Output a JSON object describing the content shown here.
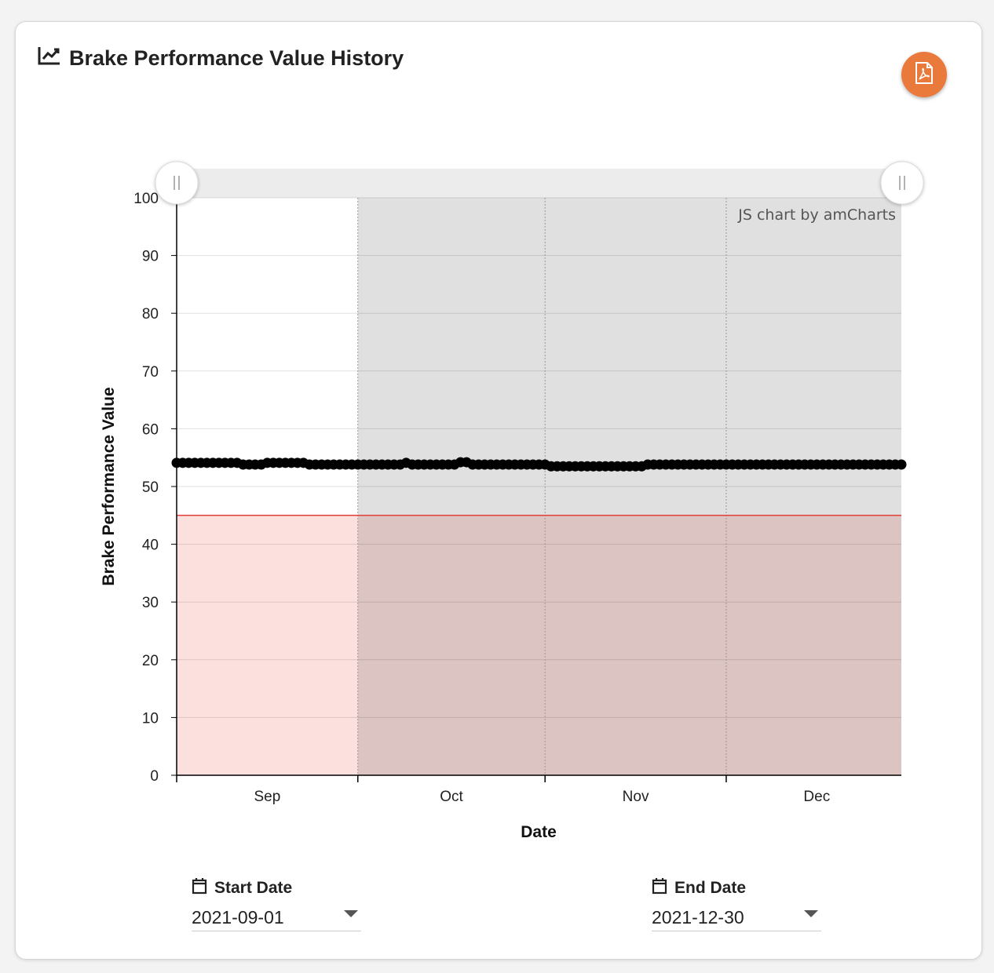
{
  "header": {
    "title": "Brake Performance Value History",
    "icon": "line-chart-icon",
    "export_icon": "pdf-file-icon",
    "accent": "#ea7a3c"
  },
  "chart_data": {
    "type": "line",
    "xlabel": "Date",
    "ylabel": "Brake Performance Value",
    "ylim": [
      0,
      100
    ],
    "yticks": [
      0,
      10,
      20,
      30,
      40,
      50,
      60,
      70,
      80,
      90,
      100
    ],
    "x_start": "2021-09-01",
    "x_end": "2021-12-30",
    "x_interval": "1 day",
    "xtick_labels": [
      "Sep",
      "Oct",
      "Nov",
      "Dec"
    ],
    "series": [
      {
        "name": "Brake Performance Value",
        "color": "#000000",
        "values": [
          54.1,
          54.1,
          54.1,
          54.1,
          54.1,
          54.1,
          54.1,
          54.1,
          54.1,
          54.1,
          54.1,
          53.8,
          53.8,
          53.8,
          53.8,
          54.1,
          54.1,
          54.1,
          54.1,
          54.1,
          54.1,
          54.1,
          53.8,
          53.8,
          53.8,
          53.8,
          53.8,
          53.8,
          53.8,
          53.8,
          53.8,
          53.8,
          53.8,
          53.8,
          53.8,
          53.8,
          53.8,
          53.8,
          54.1,
          53.8,
          53.8,
          53.8,
          53.8,
          53.8,
          53.8,
          53.8,
          53.8,
          54.2,
          54.2,
          53.8,
          53.8,
          53.8,
          53.8,
          53.8,
          53.8,
          53.8,
          53.8,
          53.8,
          53.8,
          53.8,
          53.8,
          53.8,
          53.5,
          53.5,
          53.5,
          53.5,
          53.5,
          53.5,
          53.5,
          53.5,
          53.5,
          53.5,
          53.5,
          53.5,
          53.5,
          53.5,
          53.5,
          53.5,
          53.8,
          53.8,
          53.8,
          53.8,
          53.8,
          53.8,
          53.8,
          53.8,
          53.8,
          53.8,
          53.8,
          53.8,
          53.8,
          53.8,
          53.8,
          53.8,
          53.8,
          53.8,
          53.8,
          53.8,
          53.8,
          53.8,
          53.8,
          53.8,
          53.8,
          53.8,
          53.8,
          53.8,
          53.8,
          53.8,
          53.8,
          53.8,
          53.8,
          53.8,
          53.8,
          53.8,
          53.8,
          53.8,
          53.8,
          53.8,
          53.8,
          53.8,
          53.8
        ]
      }
    ],
    "threshold": {
      "value": 45,
      "color": "#e0413a",
      "fill": "#f9d5d3"
    },
    "highlight_range": {
      "from": "2021-10-01",
      "to": "2021-12-30",
      "color": "#e0e0e0"
    },
    "credit": "JS chart by amCharts",
    "grid": true
  },
  "filters": {
    "start": {
      "label": "Start Date",
      "value": "2021-09-01"
    },
    "end": {
      "label": "End Date",
      "value": "2021-12-30"
    }
  }
}
